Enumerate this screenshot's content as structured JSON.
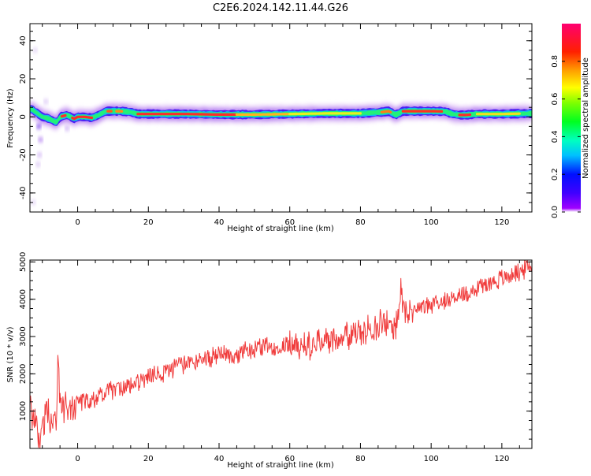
{
  "title": "C2E6.2024.142.11.44.G26",
  "chart_data": [
    {
      "type": "heatmap",
      "xlabel": "Height of straight line (km)",
      "ylabel": "Frequency (Hz)",
      "xlim": [
        -13.5,
        128.5
      ],
      "ylim": [
        -50,
        49
      ],
      "xticks": [
        0,
        20,
        40,
        60,
        80,
        100,
        120
      ],
      "yticks": [
        -40,
        -20,
        0,
        20,
        40
      ],
      "colorbar": {
        "label": "Normalized spectral amplitude",
        "range": [
          0,
          1
        ],
        "ticks": [
          "0.0",
          "0.2",
          "0.4",
          "0.6",
          "0.8"
        ],
        "colormap": "gist_rainbow"
      },
      "ridge": {
        "x": [
          -13,
          -10,
          -8,
          -6,
          -5,
          -3,
          -1,
          0,
          2,
          4,
          6,
          8,
          10,
          12,
          15,
          17,
          20,
          25,
          30,
          40,
          50,
          60,
          70,
          80,
          86,
          88,
          90,
          92,
          100,
          104,
          106,
          108,
          110,
          113,
          120,
          128
        ],
        "y": [
          4,
          0,
          -1,
          -3,
          0,
          1,
          -1,
          0,
          0,
          -0.5,
          1,
          3,
          3,
          3,
          2.5,
          1.5,
          1.5,
          1.5,
          1.5,
          1.2,
          1.2,
          1.5,
          1.8,
          1.8,
          2.5,
          3,
          1,
          3,
          3,
          2.8,
          1.5,
          1,
          1,
          1.5,
          1.5,
          1.8
        ]
      }
    },
    {
      "type": "line",
      "xlabel": "Height of straight line (km)",
      "ylabel": "SNR (10 * v/v)",
      "xlim": [
        -13.5,
        128.5
      ],
      "ylim": [
        0,
        5050
      ],
      "xticks": [
        0,
        20,
        40,
        60,
        80,
        100,
        120
      ],
      "yticks": [
        1000,
        2000,
        3000,
        4000,
        5000
      ],
      "series": [
        {
          "color": "#f03c3c",
          "x": [
            -13.5,
            -12,
            -10.5,
            -9,
            -7,
            -6,
            -5.5,
            -5,
            -4,
            -2,
            0,
            3,
            6,
            9,
            12,
            15,
            18,
            22,
            26,
            30,
            35,
            40,
            45,
            50,
            55,
            60,
            65,
            70,
            75,
            80,
            85,
            88,
            90,
            91,
            91.5,
            92,
            95,
            100,
            105,
            110,
            115,
            120,
            125,
            128.5
          ],
          "y": [
            1100,
            700,
            200,
            1050,
            700,
            800,
            2650,
            1200,
            1100,
            1050,
            1250,
            1300,
            1400,
            1550,
            1600,
            1700,
            1800,
            1950,
            2100,
            2250,
            2400,
            2500,
            2550,
            2650,
            2750,
            2800,
            2750,
            2900,
            3000,
            3100,
            3300,
            3400,
            3200,
            3900,
            4250,
            3650,
            3750,
            3850,
            4000,
            4150,
            4400,
            4550,
            4750,
            4900
          ]
        }
      ]
    }
  ]
}
